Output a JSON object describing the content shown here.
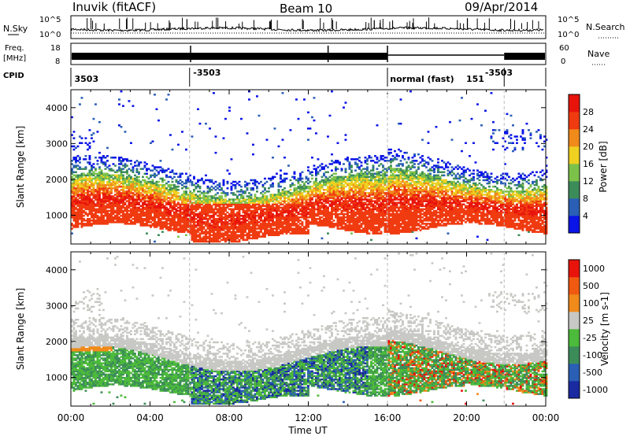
{
  "header": {
    "station": "Inuvik (fitACF)",
    "beam": "Beam 10",
    "date": "09/Apr/2014"
  },
  "strips": {
    "nsky_label": "N.Sky",
    "nsky_ticks": [
      "10^5",
      "10^0"
    ],
    "nsearch_label": "N.Search",
    "nsearch_ticks": [
      "10^5",
      "10^0"
    ],
    "freq_label_1": "Freq.",
    "freq_label_2": "[MHz]",
    "freq_ticks": [
      "18",
      "8"
    ],
    "nave_label": "Nave",
    "nave_ticks": [
      "60",
      "0"
    ],
    "cpid_label": "CPID",
    "cpid_entries": [
      {
        "text": "3503",
        "t": 0.1
      },
      {
        "text": "-3503",
        "t": 6.1
      },
      {
        "text": "normal (fast)",
        "t": 16.05
      },
      {
        "text": "151",
        "t": 19.9
      },
      {
        "text": "-3503",
        "t": 20.85
      }
    ],
    "cpid_changes": [
      6.0,
      16.0,
      21.9
    ]
  },
  "chart_data": [
    {
      "type": "heatmap",
      "name": "power",
      "xlabel": "",
      "ylabel": "Slant Range [km]",
      "xlim": [
        0,
        24
      ],
      "ylim": [
        200,
        4500
      ],
      "y_ticks": [
        1000,
        2000,
        3000,
        4000
      ],
      "colorbar": {
        "label": "Power [dB]",
        "ticks": [
          "4",
          "8",
          "12",
          "16",
          "20",
          "24",
          "28"
        ],
        "colors": [
          "#0a14e6",
          "#2a5fb5",
          "#3c8c5a",
          "#7cc24a",
          "#f0d020",
          "#f08a1a",
          "#f03a10",
          "#e8140c"
        ]
      }
    },
    {
      "type": "heatmap",
      "name": "velocity",
      "xlabel": "Time UT",
      "ylabel": "Slant Range [km]",
      "xlim": [
        0,
        24
      ],
      "ylim": [
        200,
        4500
      ],
      "y_ticks": [
        1000,
        2000,
        3000,
        4000
      ],
      "x_ticks": [
        "00:00",
        "04:00",
        "08:00",
        "12:00",
        "16:00",
        "20:00",
        "00:00"
      ],
      "colorbar": {
        "label": "Velocity [m s-1]",
        "ticks": [
          "1000",
          "500",
          "100",
          "25",
          "-25",
          "-100",
          "-500",
          "-1000"
        ],
        "colors": [
          "#1a2aa0",
          "#2a5fb5",
          "#3c8c5a",
          "#4cba3a",
          "#c8c8c4",
          "#f08a1a",
          "#f05a10",
          "#e8140c"
        ]
      }
    }
  ]
}
